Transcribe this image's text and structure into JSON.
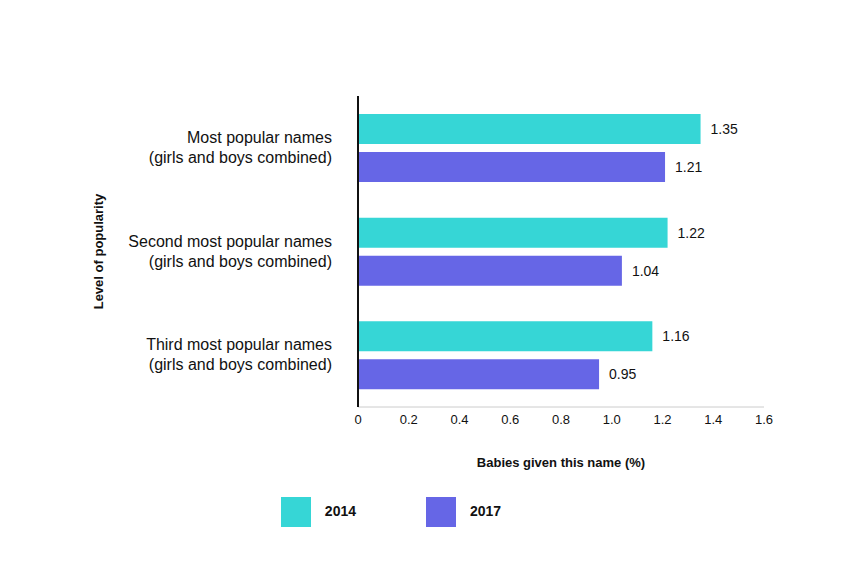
{
  "chart_data": {
    "type": "bar",
    "orientation": "horizontal",
    "categories": [
      "Most popular names (girls and boys combined)",
      "Second most popular names (girls and boys combined)",
      "Third most popular names (girls and boys combined)"
    ],
    "series": [
      {
        "name": "2014",
        "color": "#36d6d6",
        "values": [
          1.35,
          1.22,
          1.16
        ]
      },
      {
        "name": "2017",
        "color": "#6666e6",
        "values": [
          1.21,
          1.04,
          0.95
        ]
      }
    ],
    "x_label": "Babies given this name (%)",
    "y_label": "Level of popularity",
    "xlim": [
      0,
      1.6
    ],
    "xticks": [
      0,
      0.2,
      0.4,
      0.6,
      0.8,
      {
        "value": 1,
        "label": "1.0"
      },
      1.2,
      1.4,
      1.6
    ],
    "data_labels": true,
    "legend": "bottom"
  }
}
